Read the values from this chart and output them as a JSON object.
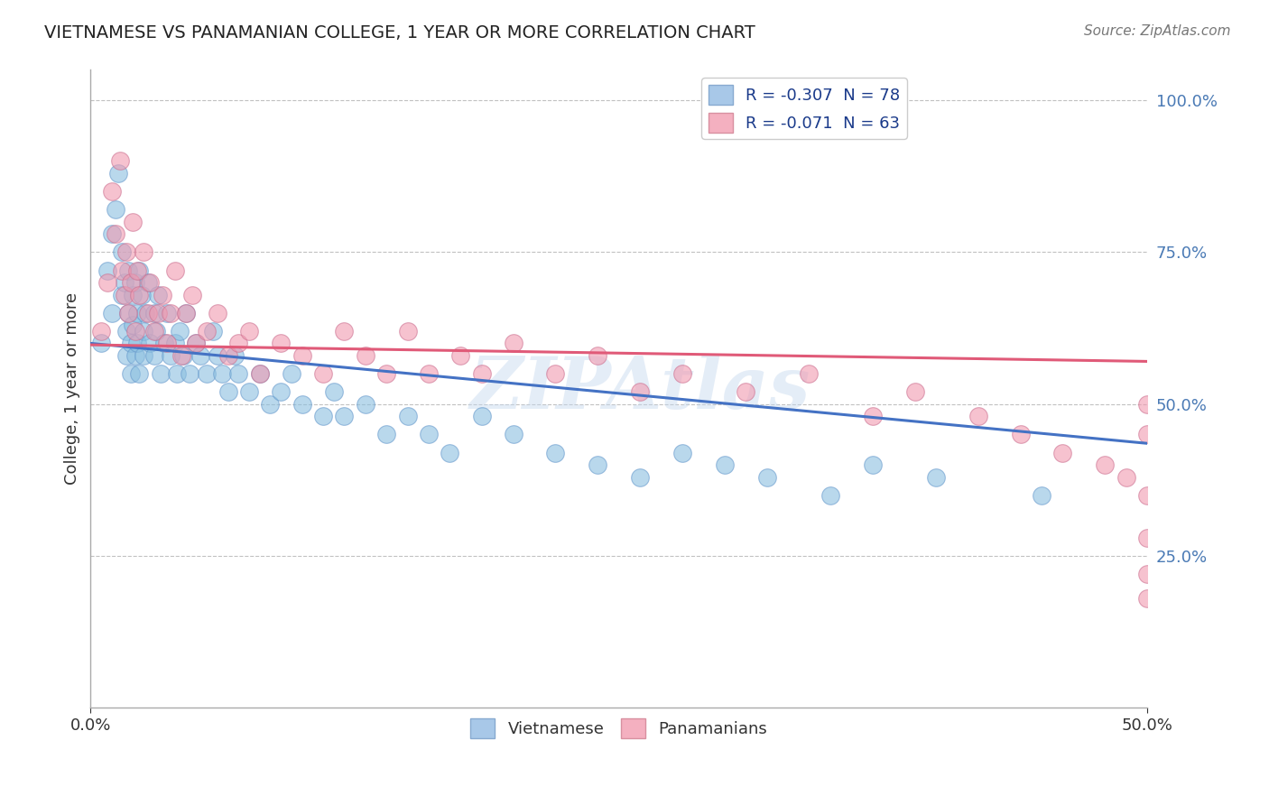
{
  "title": "VIETNAMESE VS PANAMANIAN COLLEGE, 1 YEAR OR MORE CORRELATION CHART",
  "source_text": "Source: ZipAtlas.com",
  "ylabel": "College, 1 year or more",
  "xlim": [
    0.0,
    0.5
  ],
  "ylim": [
    0.0,
    1.05
  ],
  "ytick_values": [
    0.25,
    0.5,
    0.75,
    1.0
  ],
  "ytick_labels": [
    "25.0%",
    "50.0%",
    "75.0%",
    "100.0%"
  ],
  "xtick_values": [
    0.0,
    0.5
  ],
  "xtick_labels": [
    "0.0%",
    "50.0%"
  ],
  "legend_bottom": [
    "Vietnamese",
    "Panamanians"
  ],
  "r_vietnamese": -0.307,
  "n_vietnamese": 78,
  "r_panamanian": -0.071,
  "n_panamanian": 63,
  "watermark": "ZIPAtlas",
  "title_color": "#222222",
  "axis_color": "#333333",
  "yaxis_label_color": "#4a7ab5",
  "scatter_blue_color": "#8bbfe0",
  "scatter_pink_color": "#f09ab0",
  "line_blue_color": "#4472c4",
  "line_pink_color": "#e05a78",
  "grid_color": "#bbbbbb",
  "background_color": "#ffffff",
  "vietnamese_x": [
    0.005,
    0.008,
    0.01,
    0.01,
    0.012,
    0.013,
    0.015,
    0.015,
    0.016,
    0.017,
    0.017,
    0.018,
    0.018,
    0.019,
    0.019,
    0.02,
    0.02,
    0.021,
    0.021,
    0.022,
    0.022,
    0.023,
    0.023,
    0.024,
    0.025,
    0.025,
    0.026,
    0.027,
    0.028,
    0.03,
    0.03,
    0.031,
    0.032,
    0.033,
    0.035,
    0.036,
    0.038,
    0.04,
    0.041,
    0.042,
    0.044,
    0.045,
    0.047,
    0.05,
    0.052,
    0.055,
    0.058,
    0.06,
    0.062,
    0.065,
    0.068,
    0.07,
    0.075,
    0.08,
    0.085,
    0.09,
    0.095,
    0.1,
    0.11,
    0.115,
    0.12,
    0.13,
    0.14,
    0.15,
    0.16,
    0.17,
    0.185,
    0.2,
    0.22,
    0.24,
    0.26,
    0.28,
    0.3,
    0.32,
    0.35,
    0.37,
    0.4,
    0.45
  ],
  "vietnamese_y": [
    0.6,
    0.72,
    0.65,
    0.78,
    0.82,
    0.88,
    0.75,
    0.68,
    0.7,
    0.62,
    0.58,
    0.65,
    0.72,
    0.6,
    0.55,
    0.68,
    0.63,
    0.7,
    0.58,
    0.65,
    0.6,
    0.72,
    0.55,
    0.68,
    0.62,
    0.58,
    0.65,
    0.7,
    0.6,
    0.65,
    0.58,
    0.62,
    0.68,
    0.55,
    0.6,
    0.65,
    0.58,
    0.6,
    0.55,
    0.62,
    0.58,
    0.65,
    0.55,
    0.6,
    0.58,
    0.55,
    0.62,
    0.58,
    0.55,
    0.52,
    0.58,
    0.55,
    0.52,
    0.55,
    0.5,
    0.52,
    0.55,
    0.5,
    0.48,
    0.52,
    0.48,
    0.5,
    0.45,
    0.48,
    0.45,
    0.42,
    0.48,
    0.45,
    0.42,
    0.4,
    0.38,
    0.42,
    0.4,
    0.38,
    0.35,
    0.4,
    0.38,
    0.35
  ],
  "panamanian_x": [
    0.005,
    0.008,
    0.01,
    0.012,
    0.014,
    0.015,
    0.016,
    0.017,
    0.018,
    0.019,
    0.02,
    0.021,
    0.022,
    0.023,
    0.025,
    0.027,
    0.028,
    0.03,
    0.032,
    0.034,
    0.036,
    0.038,
    0.04,
    0.043,
    0.045,
    0.048,
    0.05,
    0.055,
    0.06,
    0.065,
    0.07,
    0.075,
    0.08,
    0.09,
    0.1,
    0.11,
    0.12,
    0.13,
    0.14,
    0.15,
    0.16,
    0.175,
    0.185,
    0.2,
    0.22,
    0.24,
    0.26,
    0.28,
    0.31,
    0.34,
    0.37,
    0.39,
    0.42,
    0.44,
    0.46,
    0.48,
    0.49,
    0.5,
    0.5,
    0.5,
    0.5,
    0.5,
    0.5
  ],
  "panamanian_y": [
    0.62,
    0.7,
    0.85,
    0.78,
    0.9,
    0.72,
    0.68,
    0.75,
    0.65,
    0.7,
    0.8,
    0.62,
    0.72,
    0.68,
    0.75,
    0.65,
    0.7,
    0.62,
    0.65,
    0.68,
    0.6,
    0.65,
    0.72,
    0.58,
    0.65,
    0.68,
    0.6,
    0.62,
    0.65,
    0.58,
    0.6,
    0.62,
    0.55,
    0.6,
    0.58,
    0.55,
    0.62,
    0.58,
    0.55,
    0.62,
    0.55,
    0.58,
    0.55,
    0.6,
    0.55,
    0.58,
    0.52,
    0.55,
    0.52,
    0.55,
    0.48,
    0.52,
    0.48,
    0.45,
    0.42,
    0.4,
    0.38,
    0.35,
    0.5,
    0.45,
    0.28,
    0.22,
    0.18
  ]
}
